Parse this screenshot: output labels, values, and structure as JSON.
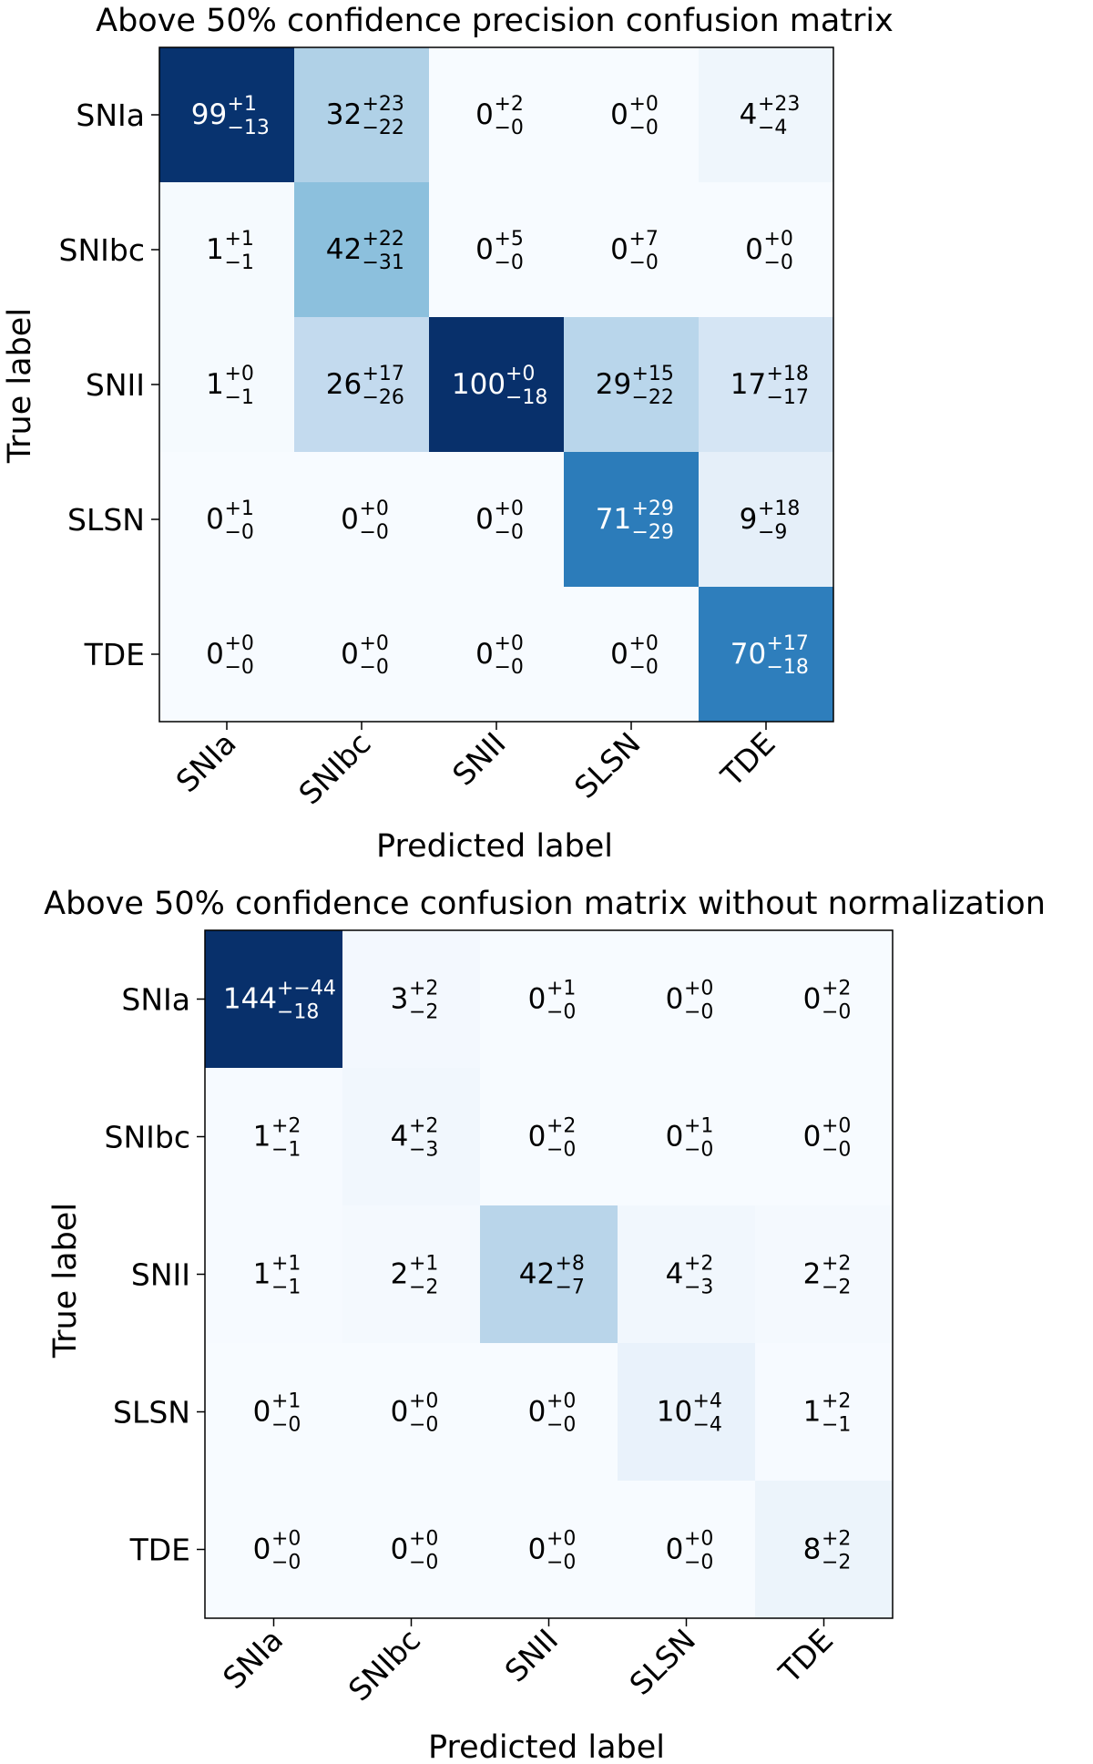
{
  "chart_data": [
    {
      "type": "heatmap",
      "title": "Above 50% confidence precision confusion matrix",
      "xlabel": "Predicted label",
      "ylabel": "True label",
      "row_labels": [
        "SNIa",
        "SNIbc",
        "SNII",
        "SLSN",
        "TDE"
      ],
      "col_labels": [
        "SNIa",
        "SNIbc",
        "SNII",
        "SLSN",
        "TDE"
      ],
      "values": [
        [
          99,
          32,
          0,
          0,
          4
        ],
        [
          1,
          42,
          0,
          0,
          0
        ],
        [
          1,
          26,
          100,
          29,
          17
        ],
        [
          0,
          0,
          0,
          71,
          9
        ],
        [
          0,
          0,
          0,
          0,
          70
        ]
      ],
      "upper": [
        [
          "+1",
          "+23",
          "+2",
          "+0",
          "+23"
        ],
        [
          "+1",
          "+22",
          "+5",
          "+7",
          "+0"
        ],
        [
          "+0",
          "+17",
          "+0",
          "+15",
          "+18"
        ],
        [
          "+1",
          "+0",
          "+0",
          "+29",
          "+18"
        ],
        [
          "+0",
          "+0",
          "+0",
          "+0",
          "+17"
        ]
      ],
      "lower": [
        [
          "−13",
          "−22",
          "−0",
          "−0",
          "−4"
        ],
        [
          "−1",
          "−31",
          "−0",
          "−0",
          "−0"
        ],
        [
          "−1",
          "−26",
          "−18",
          "−22",
          "−17"
        ],
        [
          "−0",
          "−0",
          "−0",
          "−29",
          "−9"
        ],
        [
          "−0",
          "−0",
          "−0",
          "−0",
          "−18"
        ]
      ],
      "color_max": 100,
      "colormap": "Blues",
      "colors": {
        "low": "#f7fbff",
        "high": "#08306b"
      }
    },
    {
      "type": "heatmap",
      "title": "Above 50% confidence confusion matrix without normalization",
      "xlabel": "Predicted label",
      "ylabel": "True label",
      "row_labels": [
        "SNIa",
        "SNIbc",
        "SNII",
        "SLSN",
        "TDE"
      ],
      "col_labels": [
        "SNIa",
        "SNIbc",
        "SNII",
        "SLSN",
        "TDE"
      ],
      "values": [
        [
          144,
          3,
          0,
          0,
          0
        ],
        [
          1,
          4,
          0,
          0,
          0
        ],
        [
          1,
          2,
          42,
          4,
          2
        ],
        [
          0,
          0,
          0,
          10,
          1
        ],
        [
          0,
          0,
          0,
          0,
          8
        ]
      ],
      "upper": [
        [
          "+−44",
          "+2",
          "+1",
          "+0",
          "+2"
        ],
        [
          "+2",
          "+2",
          "+2",
          "+1",
          "+0"
        ],
        [
          "+1",
          "+1",
          "+8",
          "+2",
          "+2"
        ],
        [
          "+1",
          "+0",
          "+0",
          "+4",
          "+2"
        ],
        [
          "+0",
          "+0",
          "+0",
          "+0",
          "+2"
        ]
      ],
      "lower": [
        [
          "−18",
          "−2",
          "−0",
          "−0",
          "−0"
        ],
        [
          "−1",
          "−3",
          "−0",
          "−0",
          "−0"
        ],
        [
          "−1",
          "−2",
          "−7",
          "−3",
          "−2"
        ],
        [
          "−0",
          "−0",
          "−0",
          "−4",
          "−1"
        ],
        [
          "−0",
          "−0",
          "−0",
          "−0",
          "−2"
        ]
      ],
      "color_max": 144,
      "colormap": "Blues",
      "colors": {
        "low": "#f7fbff",
        "high": "#08306b"
      }
    }
  ]
}
